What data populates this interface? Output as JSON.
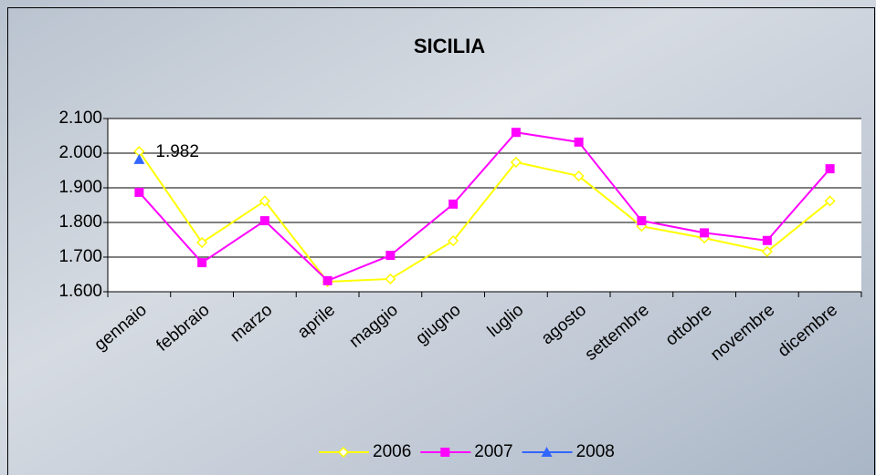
{
  "chart_data": {
    "type": "line",
    "title": "SICILIA",
    "categories": [
      "gennaio",
      "febbraio",
      "marzo",
      "aprile",
      "maggio",
      "giugno",
      "luglio",
      "agosto",
      "settembre",
      "ottobre",
      "novembre",
      "dicembre"
    ],
    "series": [
      {
        "name": "2006",
        "color": "#ffff00",
        "values": [
          2005,
          1742,
          1862,
          1629,
          1637,
          1747,
          1974,
          1934,
          1789,
          1755,
          1716,
          1862
        ]
      },
      {
        "name": "2007",
        "color": "#ff00ff",
        "values": [
          1887,
          1684,
          1805,
          1632,
          1705,
          1853,
          2060,
          2032,
          1805,
          1770,
          1748,
          1955
        ]
      },
      {
        "name": "2008",
        "color": "#3366ff",
        "values": [
          1982,
          null,
          null,
          null,
          null,
          null,
          null,
          null,
          null,
          null,
          null,
          null
        ],
        "value_labels": [
          "1.982",
          null,
          null,
          null,
          null,
          null,
          null,
          null,
          null,
          null,
          null,
          null
        ]
      }
    ],
    "ylim": [
      1600,
      2100
    ],
    "yticks": [
      {
        "value": 1600,
        "label": "1.600"
      },
      {
        "value": 1700,
        "label": "1.700"
      },
      {
        "value": 1800,
        "label": "1.800"
      },
      {
        "value": 1900,
        "label": "1.900"
      },
      {
        "value": 2000,
        "label": "2.000"
      },
      {
        "value": 2100,
        "label": "2.100"
      }
    ],
    "grid": true,
    "legend": "bottom"
  }
}
